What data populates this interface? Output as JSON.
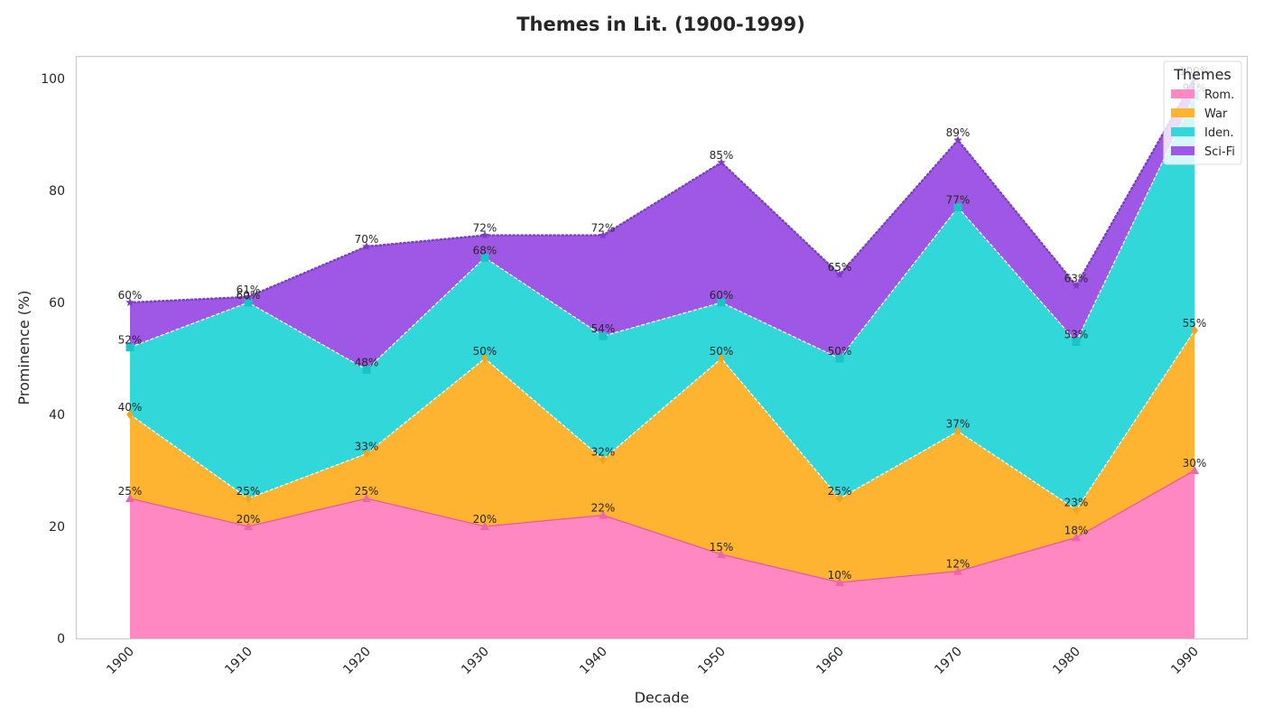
{
  "chart_data": {
    "type": "area",
    "stacked": true,
    "title": "Themes in Lit. (1900-1999)",
    "xlabel": "Decade",
    "ylabel": "Prominence (%)",
    "categories": [
      "1900",
      "1910",
      "1920",
      "1930",
      "1940",
      "1950",
      "1960",
      "1970",
      "1980",
      "1990"
    ],
    "ylim": [
      0,
      104
    ],
    "yticks": [
      "0",
      "20",
      "40",
      "60",
      "80",
      "100"
    ],
    "grid": false,
    "legend": {
      "title": "Themes",
      "placement": "top-right"
    },
    "series": [
      {
        "name": "Rom.",
        "values": [
          25,
          20,
          25,
          20,
          22,
          15,
          10,
          12,
          18,
          30
        ],
        "cumulative_labels": [
          "25%",
          "20%",
          "25%",
          "20%",
          "22%",
          "15%",
          "10%",
          "12%",
          "18%",
          "30%"
        ],
        "color": "#ff88c2",
        "marker": "triangle"
      },
      {
        "name": "War",
        "values": [
          15,
          5,
          8,
          30,
          10,
          35,
          15,
          25,
          5,
          25
        ],
        "cumulative_labels": [
          "40%",
          "25%",
          "33%",
          "50%",
          "32%",
          "50%",
          "25%",
          "37%",
          "23%",
          "55%"
        ],
        "color": "#feb331",
        "marker": "diamond"
      },
      {
        "name": "Iden.",
        "values": [
          12,
          35,
          15,
          18,
          22,
          10,
          25,
          40,
          30,
          42
        ],
        "cumulative_labels": [
          "52%",
          "60%",
          "48%",
          "68%",
          "54%",
          "60%",
          "50%",
          "77%",
          "53%",
          "97%"
        ],
        "color": "#31d7d9",
        "marker": "square"
      },
      {
        "name": "Sci-Fi",
        "values": [
          8,
          1,
          22,
          4,
          18,
          25,
          15,
          12,
          10,
          3
        ],
        "cumulative_labels": [
          "60%",
          "61%",
          "70%",
          "72%",
          "72%",
          "85%",
          "65%",
          "89%",
          "63%",
          "100%"
        ],
        "color": "#9f57e6",
        "marker": "star"
      }
    ]
  }
}
